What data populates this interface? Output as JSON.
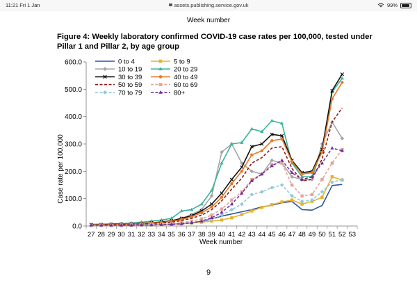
{
  "statusbar": {
    "time": "11:21  Fri 1 Jan",
    "url": "assets.publishing.service.gov.uk",
    "battery": "99%"
  },
  "page": {
    "previous_axis_label": "Week number",
    "figure_title": "Figure 4: Weekly laboratory confirmed COVID-19 case rates per 100,000, tested under Pillar 1 and Pillar 2, by age group",
    "page_number": "9"
  },
  "chart_data": {
    "type": "line",
    "xlabel": "Week number",
    "ylabel": "Case rate per 100,000",
    "ylim": [
      0,
      600
    ],
    "yticks": [
      "0.0",
      "100.0",
      "200.0",
      "300.0",
      "400.0",
      "500.0",
      "600.0"
    ],
    "categories": [
      "27",
      "28",
      "29",
      "30",
      "31",
      "32",
      "33",
      "34",
      "35",
      "36",
      "37",
      "38",
      "39",
      "40",
      "41",
      "42",
      "43",
      "44",
      "45",
      "46",
      "47",
      "48",
      "49",
      "50",
      "51",
      "52",
      "53"
    ],
    "legend_position": "top-left",
    "series": [
      {
        "name": "0 to 4",
        "color": "#2f5597",
        "dash": "solid",
        "marker": "none",
        "values": [
          2,
          2,
          2,
          3,
          3,
          4,
          4,
          5,
          6,
          9,
          12,
          17,
          26,
          36,
          44,
          52,
          60,
          70,
          76,
          85,
          90,
          60,
          58,
          75,
          148,
          152,
          null
        ]
      },
      {
        "name": "5 to 9",
        "color": "#e8b02c",
        "dash": "solid",
        "marker": "square",
        "values": [
          2,
          2,
          2,
          2,
          3,
          3,
          4,
          5,
          6,
          8,
          11,
          14,
          18,
          22,
          30,
          42,
          55,
          68,
          78,
          88,
          95,
          80,
          90,
          105,
          180,
          168,
          null
        ]
      },
      {
        "name": "10 to 19",
        "color": "#a5a5a5",
        "dash": "solid",
        "marker": "diamond",
        "values": [
          4,
          4,
          5,
          6,
          7,
          8,
          10,
          12,
          18,
          28,
          42,
          60,
          110,
          270,
          300,
          230,
          200,
          190,
          240,
          230,
          180,
          170,
          170,
          300,
          380,
          320,
          null
        ]
      },
      {
        "name": "20 to 29",
        "color": "#3cb39a",
        "dash": "solid",
        "marker": "triangle",
        "values": [
          6,
          7,
          8,
          9,
          11,
          14,
          18,
          22,
          28,
          55,
          60,
          80,
          130,
          230,
          300,
          305,
          355,
          345,
          385,
          375,
          230,
          180,
          180,
          280,
          490,
          540,
          null
        ]
      },
      {
        "name": "30 to 39",
        "color": "#111111",
        "dash": "solid",
        "marker": "x",
        "values": [
          5,
          5,
          6,
          7,
          8,
          10,
          12,
          15,
          19,
          28,
          38,
          55,
          80,
          120,
          170,
          215,
          290,
          300,
          335,
          330,
          240,
          195,
          200,
          280,
          495,
          555,
          null
        ]
      },
      {
        "name": "40 to 49",
        "color": "#e87a26",
        "dash": "solid",
        "marker": "circle",
        "values": [
          4,
          5,
          5,
          6,
          7,
          9,
          11,
          13,
          17,
          24,
          34,
          48,
          70,
          105,
          155,
          200,
          260,
          275,
          312,
          318,
          235,
          190,
          195,
          270,
          465,
          525,
          null
        ]
      },
      {
        "name": "50 to 59",
        "color": "#8b1a1a",
        "dash": "dash",
        "marker": "none",
        "values": [
          3,
          4,
          4,
          5,
          6,
          7,
          9,
          11,
          14,
          20,
          28,
          40,
          60,
          92,
          135,
          175,
          230,
          250,
          285,
          290,
          210,
          165,
          170,
          245,
          380,
          432,
          null
        ]
      },
      {
        "name": "60 to 69",
        "color": "#e4a39a",
        "dash": "dash",
        "marker": "square",
        "values": [
          2,
          3,
          3,
          3,
          4,
          5,
          6,
          7,
          9,
          13,
          18,
          26,
          40,
          62,
          95,
          125,
          170,
          190,
          225,
          230,
          150,
          110,
          115,
          170,
          230,
          280,
          null
        ]
      },
      {
        "name": "70 to 79",
        "color": "#8ec8de",
        "dash": "dash",
        "marker": "diamond",
        "values": [
          2,
          2,
          2,
          2,
          3,
          3,
          4,
          5,
          6,
          8,
          11,
          16,
          25,
          40,
          60,
          80,
          115,
          125,
          140,
          150,
          110,
          90,
          95,
          125,
          160,
          170,
          null
        ]
      },
      {
        "name": "80+",
        "color": "#7030a0",
        "dash": "dash",
        "marker": "triangle",
        "values": [
          3,
          3,
          3,
          3,
          3,
          4,
          4,
          5,
          6,
          8,
          12,
          18,
          30,
          50,
          80,
          120,
          165,
          190,
          220,
          240,
          195,
          170,
          180,
          230,
          285,
          275,
          null
        ]
      }
    ]
  }
}
